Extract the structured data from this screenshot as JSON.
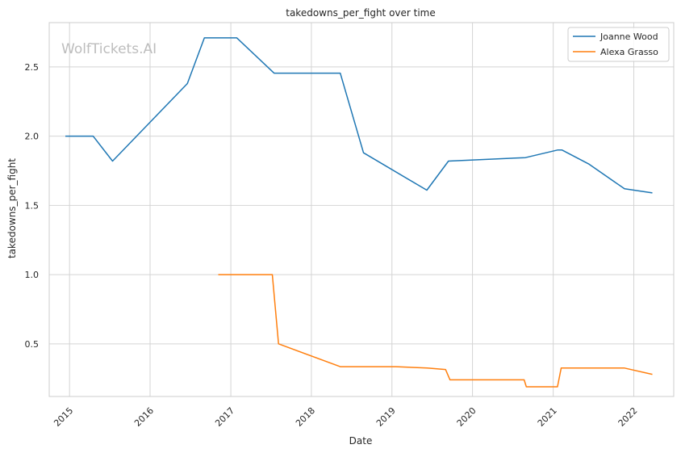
{
  "chart_data": {
    "type": "line",
    "title": "takedowns_per_fight over time",
    "xlabel": "Date",
    "ylabel": "takedowns_per_fight",
    "watermark": "WolfTickets.AI",
    "xlim": [
      "2014-10-01",
      "2022-07-01"
    ],
    "ylim": [
      0.12,
      2.82
    ],
    "x_ticks": [
      "2015-01-01",
      "2016-01-01",
      "2017-01-01",
      "2018-01-01",
      "2019-01-01",
      "2020-01-01",
      "2021-01-01",
      "2022-01-01"
    ],
    "x_tick_labels": [
      "2015",
      "2016",
      "2017",
      "2018",
      "2019",
      "2020",
      "2021",
      "2022"
    ],
    "y_ticks": [
      0.5,
      1.0,
      1.5,
      2.0,
      2.5
    ],
    "y_tick_labels": [
      "0.5",
      "1.0",
      "1.5",
      "2.0",
      "2.5"
    ],
    "grid": true,
    "legend_position": "top-right",
    "series": [
      {
        "name": "Joanne Wood",
        "color": "#1f77b4",
        "points": [
          [
            "2014-12-13",
            2.0
          ],
          [
            "2015-04-18",
            2.0
          ],
          [
            "2015-07-15",
            1.82
          ],
          [
            "2016-06-18",
            2.38
          ],
          [
            "2016-09-03",
            2.71
          ],
          [
            "2017-01-28",
            2.71
          ],
          [
            "2017-07-16",
            2.455
          ],
          [
            "2018-05-12",
            2.455
          ],
          [
            "2018-08-25",
            1.88
          ],
          [
            "2019-06-08",
            1.61
          ],
          [
            "2019-09-14",
            1.82
          ],
          [
            "2020-08-28",
            1.845
          ],
          [
            "2021-01-20",
            1.9
          ],
          [
            "2021-02-10",
            1.9
          ],
          [
            "2021-06-10",
            1.8
          ],
          [
            "2021-11-20",
            1.62
          ],
          [
            "2022-03-26",
            1.59
          ]
        ]
      },
      {
        "name": "Alexa Grasso",
        "color": "#ff7f0e",
        "points": [
          [
            "2016-11-05",
            1.0
          ],
          [
            "2017-07-08",
            1.0
          ],
          [
            "2017-08-05",
            0.5
          ],
          [
            "2018-05-12",
            0.335
          ],
          [
            "2019-01-19",
            0.335
          ],
          [
            "2019-06-10",
            0.325
          ],
          [
            "2019-09-01",
            0.315
          ],
          [
            "2019-09-21",
            0.24
          ],
          [
            "2020-08-22",
            0.24
          ],
          [
            "2020-09-01",
            0.19
          ],
          [
            "2021-01-20",
            0.19
          ],
          [
            "2021-02-06",
            0.325
          ],
          [
            "2021-11-20",
            0.325
          ],
          [
            "2022-03-26",
            0.28
          ]
        ]
      }
    ]
  }
}
